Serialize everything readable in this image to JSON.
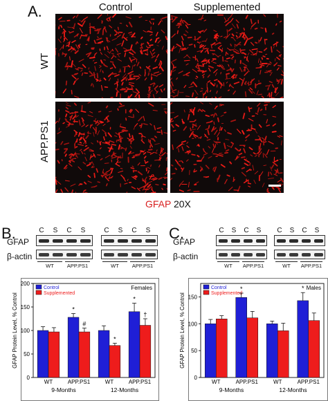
{
  "panel_a": {
    "letter": "A.",
    "col_headers": [
      "Control",
      "Supplemented"
    ],
    "row_headers": [
      "WT",
      "APP.PS1"
    ],
    "caption_stain": "GFAP",
    "caption_mag": "20X"
  },
  "panel_b": {
    "letter": "B.",
    "blot_labels": [
      "GFAP",
      "β-actin"
    ],
    "lane_letters": [
      "C",
      "S",
      "C",
      "S"
    ],
    "genotypes": [
      "WT",
      "APP.PS1"
    ]
  },
  "panel_c": {
    "letter": "C.",
    "blot_labels": [
      "GFAP",
      "β-actin"
    ],
    "lane_letters": [
      "C",
      "S",
      "C",
      "S"
    ],
    "genotypes": [
      "WT",
      "APP.PS1"
    ]
  },
  "colors": {
    "control": "#1f1fd6",
    "supplemented": "#ee1c1c",
    "stain": "#d81e1e"
  },
  "chart_data": [
    {
      "type": "bar",
      "title": "Females",
      "ylabel": "GFAP Protein Level, % Control",
      "ylim": [
        0,
        200
      ],
      "yticks": [
        0,
        50,
        100,
        150,
        200
      ],
      "categories": [
        "WT",
        "APP.PS1",
        "WT",
        "APP.PS1"
      ],
      "groups": [
        "9-Months",
        "12-Months"
      ],
      "series": [
        {
          "name": "Control",
          "values": [
            100,
            128,
            100,
            140
          ],
          "errors": [
            8,
            8,
            10,
            18
          ],
          "marks": [
            "",
            "*",
            "",
            "*"
          ]
        },
        {
          "name": "Supplemented",
          "values": [
            97,
            97,
            68,
            111
          ],
          "errors": [
            9,
            8,
            5,
            14
          ],
          "marks": [
            "",
            "#",
            "*",
            "†"
          ]
        }
      ]
    },
    {
      "type": "bar",
      "title": "Males",
      "ylabel": "GFAP Protein Level, % Control",
      "ylim": [
        0,
        175
      ],
      "yticks": [
        0,
        50,
        100,
        150
      ],
      "categories": [
        "WT",
        "APP.PS1",
        "WT",
        "APP.PS1"
      ],
      "groups": [
        "9-Months",
        "12-Months"
      ],
      "series": [
        {
          "name": "Control",
          "values": [
            100,
            149,
            100,
            143
          ],
          "errors": [
            8,
            8,
            5,
            15
          ],
          "marks": [
            "",
            "*",
            "",
            "*"
          ]
        },
        {
          "name": "Supplemented",
          "values": [
            109,
            111,
            87,
            106
          ],
          "errors": [
            6,
            12,
            14,
            14
          ],
          "marks": [
            "",
            "",
            "",
            ""
          ]
        }
      ]
    }
  ]
}
